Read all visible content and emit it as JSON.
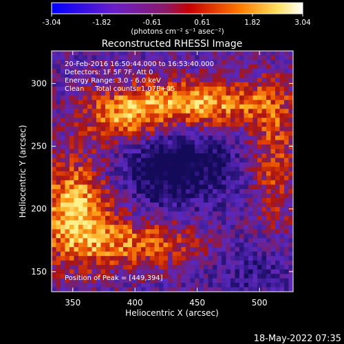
{
  "chart_data": {
    "type": "heatmap",
    "title": "Reconstructed RHESSI Image",
    "xlabel": "Heliocentric X (arcsec)",
    "ylabel": "Heliocentric Y (arcsec)",
    "xlim": [
      333,
      527
    ],
    "ylim": [
      134,
      326
    ],
    "x_ticks": [
      350,
      400,
      450,
      500
    ],
    "y_ticks": [
      150,
      200,
      250,
      300
    ],
    "colorbar": {
      "min": -3.04,
      "max": 3.04,
      "ticks": [
        "-3.04",
        "-1.82",
        "-0.61",
        "0.61",
        "1.82",
        "3.04"
      ],
      "unit_label": "(photons cm⁻² s⁻¹ asec⁻²)"
    },
    "annotations": [
      "20-Feb-2016 16:50:44.000 to 16:53:40.000",
      "Detectors: 1F 5F 7F, Att 0",
      "Energy Range: 3.0 - 6.0 keV",
      "Clean     Total counts: 1.07E+05",
      "Position of Peak = [449,394]"
    ],
    "grid": false,
    "cmap": "blue-purple-red-yellow-white"
  },
  "footer": {
    "date": "18-May-2022 07:35"
  }
}
